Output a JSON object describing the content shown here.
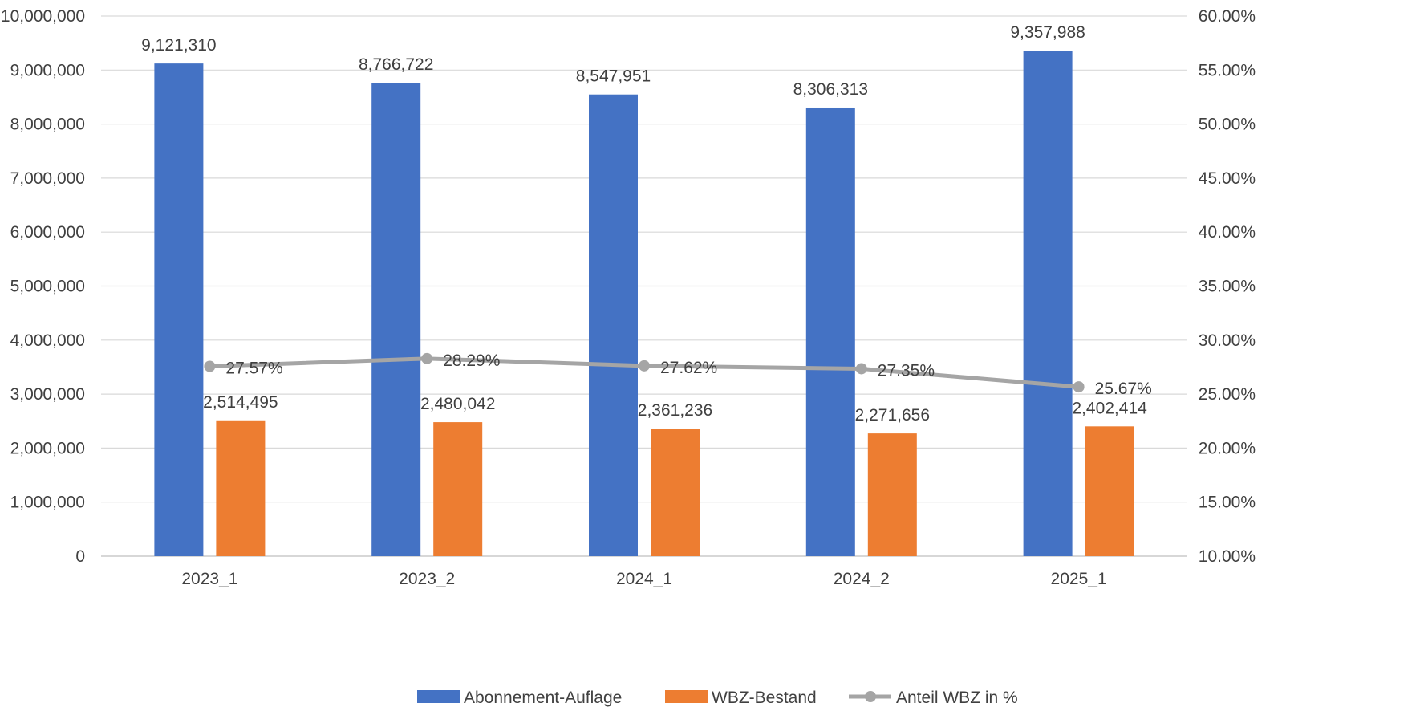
{
  "chart_data": {
    "type": "bar",
    "categories": [
      "2023_1",
      "2023_2",
      "2024_1",
      "2024_2",
      "2025_1"
    ],
    "series": [
      {
        "name": "Abonnement-Auflage",
        "kind": "bar",
        "axis": "left",
        "color": "#4472C4",
        "values": [
          9121310,
          8766722,
          8547951,
          8306313,
          9357988
        ],
        "labels": [
          "9,121,310",
          "8,766,722",
          "8,547,951",
          "8,306,313",
          "9,357,988"
        ]
      },
      {
        "name": "WBZ-Bestand",
        "kind": "bar",
        "axis": "left",
        "color": "#ED7D31",
        "values": [
          2514495,
          2480042,
          2361236,
          2271656,
          2402414
        ],
        "labels": [
          "2,514,495",
          "2,480,042",
          "2,361,236",
          "2,271,656",
          "2,402,414"
        ]
      },
      {
        "name": "Anteil WBZ in %",
        "kind": "line",
        "axis": "right",
        "color": "#A5A5A5",
        "values": [
          27.57,
          28.29,
          27.62,
          27.35,
          25.67
        ],
        "labels": [
          "27.57%",
          "28.29%",
          "27.62%",
          "27.35%",
          "25.67%"
        ]
      }
    ],
    "y_left": {
      "range": [
        0,
        10000000
      ],
      "ticks": [
        0,
        1000000,
        2000000,
        3000000,
        4000000,
        5000000,
        6000000,
        7000000,
        8000000,
        9000000,
        10000000
      ],
      "tick_labels": [
        "0",
        "1,000,000",
        "2,000,000",
        "3,000,000",
        "4,000,000",
        "5,000,000",
        "6,000,000",
        "7,000,000",
        "8,000,000",
        "9,000,000",
        "10,000,000"
      ]
    },
    "y_right": {
      "range": [
        10,
        60
      ],
      "ticks": [
        10,
        15,
        20,
        25,
        30,
        35,
        40,
        45,
        50,
        55,
        60
      ],
      "tick_labels": [
        "10.00%",
        "15.00%",
        "20.00%",
        "25.00%",
        "30.00%",
        "35.00%",
        "40.00%",
        "45.00%",
        "50.00%",
        "55.00%",
        "60.00%"
      ]
    },
    "title": "",
    "xlabel": "",
    "ylabel": "",
    "grid": true,
    "legend": "bottom",
    "gridline_color": "#D9D9D9"
  }
}
